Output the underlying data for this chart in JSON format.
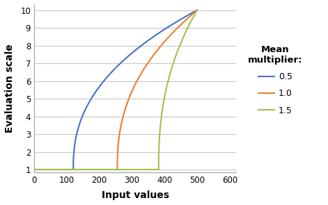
{
  "title": "",
  "xlabel": "Input values",
  "ylabel": "Evaluation scale",
  "xlim": [
    0,
    620
  ],
  "ylim": [
    1,
    10
  ],
  "xticks": [
    0,
    100,
    200,
    300,
    400,
    500,
    600
  ],
  "yticks": [
    1,
    2,
    3,
    4,
    5,
    6,
    7,
    8,
    9,
    10
  ],
  "legend_title": "Mean\nmultiplier:",
  "series": [
    {
      "x_min": 120,
      "color": "#4472C4",
      "label": "0.5"
    },
    {
      "x_min": 255,
      "color": "#ED7D31",
      "label": "1.0"
    },
    {
      "x_min": 382,
      "color": "#9DC44D",
      "label": "1.5"
    }
  ],
  "x_max": 500,
  "exponent": 0.42,
  "background_color": "#ffffff",
  "grid_color": "#c8c8c8"
}
